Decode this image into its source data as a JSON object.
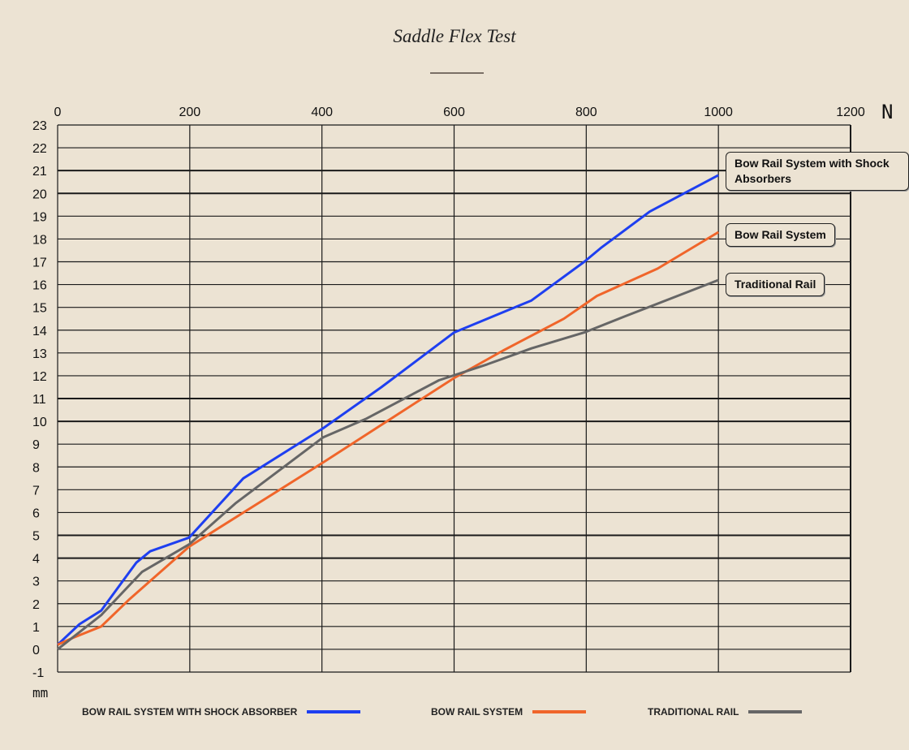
{
  "chart_data": {
    "type": "line",
    "title": "Saddle Flex Test",
    "xlabel": "N",
    "ylabel": "mm",
    "xlim": [
      0,
      1200
    ],
    "ylim": [
      -1,
      23
    ],
    "x_ticks": [
      0,
      200,
      400,
      600,
      800,
      1000,
      1200
    ],
    "y_ticks": [
      -1,
      0,
      1,
      2,
      3,
      4,
      5,
      6,
      7,
      8,
      9,
      10,
      11,
      12,
      13,
      14,
      15,
      16,
      17,
      18,
      19,
      20,
      21,
      22,
      23
    ],
    "grid": true,
    "legend_position": "bottom",
    "series": [
      {
        "name": "BOW RAIL SYSTEM WITH SHOCK ABSORBER",
        "callout": "Bow Rail System with Shock Absorbers",
        "color": "#1e3ff0",
        "x": [
          0,
          33,
          66,
          109,
          119,
          140,
          199,
          281,
          402,
          490,
          600,
          717,
          797,
          822,
          896,
          1000
        ],
        "y": [
          0.2,
          1.1,
          1.7,
          3.4,
          3.8,
          4.3,
          4.9,
          7.5,
          9.7,
          11.5,
          13.9,
          15.3,
          17.0,
          17.6,
          19.2,
          20.8
        ]
      },
      {
        "name": "BOW RAIL SYSTEM",
        "callout": "Bow Rail System",
        "color": "#f0652a",
        "x": [
          0,
          23,
          66,
          109,
          199,
          402,
          600,
          674,
          766,
          816,
          908,
          1000
        ],
        "y": [
          0.2,
          0.5,
          1.0,
          2.2,
          4.5,
          8.2,
          11.9,
          13.1,
          14.5,
          15.5,
          16.7,
          18.3
        ]
      },
      {
        "name": "TRADITIONAL RAIL",
        "callout": "Traditional Rail",
        "color": "#666666",
        "x": [
          0,
          66,
          128,
          199,
          269,
          402,
          466,
          577,
          650,
          717,
          797,
          858,
          1000
        ],
        "y": [
          0,
          1.5,
          3.4,
          4.6,
          6.4,
          9.3,
          10.1,
          11.8,
          12.5,
          13.2,
          13.9,
          14.6,
          16.2
        ]
      }
    ]
  }
}
